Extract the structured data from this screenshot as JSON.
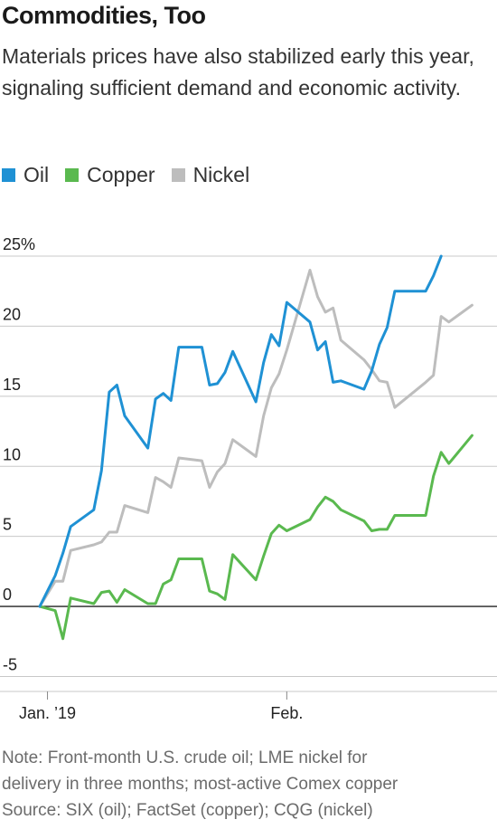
{
  "header": {
    "title": "Commodities, Too",
    "subtitle": "Materials prices have also stabilized early this year, signaling sufficient demand and economic activity."
  },
  "legend": [
    {
      "label": "Oil",
      "color": "#1f91d4"
    },
    {
      "label": "Copper",
      "color": "#5ab94f"
    },
    {
      "label": "Nickel",
      "color": "#bdbdbd"
    }
  ],
  "footer": {
    "note_lines": [
      "Note: Front-month U.S. crude oil; LME nickel for",
      "delivery in three months; most-active Comex copper"
    ],
    "source": "Source: SIX (oil); FactSet (copper); CQG (nickel)"
  },
  "chart_data": {
    "type": "line",
    "title": "Commodities, Too",
    "xlabel": "",
    "ylabel": "",
    "xlim": [
      "2018-12-31",
      "2019-02-28"
    ],
    "ylim": [
      -6,
      25
    ],
    "y_ticks": [
      {
        "value": 25,
        "label": "25%"
      },
      {
        "value": 20,
        "label": "20"
      },
      {
        "value": 15,
        "label": "15"
      },
      {
        "value": 10,
        "label": "10"
      },
      {
        "value": 5,
        "label": "5"
      },
      {
        "value": 0,
        "label": "0"
      },
      {
        "value": -5,
        "label": "-5"
      }
    ],
    "x_ticks": [
      {
        "date": "2019-01-01",
        "label": "Jan. ’19"
      },
      {
        "date": "2019-02-01",
        "label": "Feb."
      }
    ],
    "grid": true,
    "legend_position": "top-left",
    "series": [
      {
        "name": "Oil",
        "color": "#1f91d4",
        "points": [
          [
            "2018-12-31",
            0
          ],
          [
            "2019-01-02",
            2.2
          ],
          [
            "2019-01-03",
            3.8
          ],
          [
            "2019-01-04",
            5.7
          ],
          [
            "2019-01-07",
            6.9
          ],
          [
            "2019-01-08",
            9.7
          ],
          [
            "2019-01-09",
            15.3
          ],
          [
            "2019-01-10",
            15.8
          ],
          [
            "2019-01-11",
            13.6
          ],
          [
            "2019-01-14",
            11.3
          ],
          [
            "2019-01-15",
            14.8
          ],
          [
            "2019-01-16",
            15.2
          ],
          [
            "2019-01-17",
            14.7
          ],
          [
            "2019-01-18",
            18.5
          ],
          [
            "2019-01-21",
            18.5
          ],
          [
            "2019-01-22",
            15.8
          ],
          [
            "2019-01-23",
            15.9
          ],
          [
            "2019-01-24",
            16.7
          ],
          [
            "2019-01-25",
            18.2
          ],
          [
            "2019-01-28",
            14.6
          ],
          [
            "2019-01-29",
            17.4
          ],
          [
            "2019-01-30",
            19.4
          ],
          [
            "2019-01-31",
            18.6
          ],
          [
            "2019-02-01",
            21.7
          ],
          [
            "2019-02-04",
            20.3
          ],
          [
            "2019-02-05",
            18.3
          ],
          [
            "2019-02-06",
            18.9
          ],
          [
            "2019-02-07",
            16.0
          ],
          [
            "2019-02-08",
            16.1
          ],
          [
            "2019-02-11",
            15.5
          ],
          [
            "2019-02-12",
            16.8
          ],
          [
            "2019-02-13",
            18.7
          ],
          [
            "2019-02-14",
            19.9
          ],
          [
            "2019-02-15",
            22.5
          ],
          [
            "2019-02-19",
            22.5
          ],
          [
            "2019-02-20",
            23.6
          ],
          [
            "2019-02-21",
            25.0
          ]
        ]
      },
      {
        "name": "Copper",
        "color": "#5ab94f",
        "points": [
          [
            "2018-12-31",
            0
          ],
          [
            "2019-01-02",
            -0.3
          ],
          [
            "2019-01-03",
            -2.3
          ],
          [
            "2019-01-04",
            0.6
          ],
          [
            "2019-01-07",
            0.2
          ],
          [
            "2019-01-08",
            1.0
          ],
          [
            "2019-01-09",
            1.1
          ],
          [
            "2019-01-10",
            0.3
          ],
          [
            "2019-01-11",
            1.2
          ],
          [
            "2019-01-14",
            0.2
          ],
          [
            "2019-01-15",
            0.2
          ],
          [
            "2019-01-16",
            1.6
          ],
          [
            "2019-01-17",
            1.9
          ],
          [
            "2019-01-18",
            3.4
          ],
          [
            "2019-01-21",
            3.4
          ],
          [
            "2019-01-22",
            1.1
          ],
          [
            "2019-01-23",
            0.9
          ],
          [
            "2019-01-24",
            0.5
          ],
          [
            "2019-01-25",
            3.7
          ],
          [
            "2019-01-28",
            1.9
          ],
          [
            "2019-01-29",
            3.6
          ],
          [
            "2019-01-30",
            5.2
          ],
          [
            "2019-01-31",
            5.8
          ],
          [
            "2019-02-01",
            5.4
          ],
          [
            "2019-02-04",
            6.2
          ],
          [
            "2019-02-05",
            7.1
          ],
          [
            "2019-02-06",
            7.8
          ],
          [
            "2019-02-07",
            7.5
          ],
          [
            "2019-02-08",
            6.9
          ],
          [
            "2019-02-11",
            6.1
          ],
          [
            "2019-02-12",
            5.4
          ],
          [
            "2019-02-13",
            5.5
          ],
          [
            "2019-02-14",
            5.5
          ],
          [
            "2019-02-15",
            6.5
          ],
          [
            "2019-02-19",
            6.5
          ],
          [
            "2019-02-20",
            9.3
          ],
          [
            "2019-02-21",
            11.0
          ],
          [
            "2019-02-22",
            10.2
          ],
          [
            "2019-02-25",
            12.2
          ]
        ]
      },
      {
        "name": "Nickel",
        "color": "#bdbdbd",
        "points": [
          [
            "2018-12-31",
            0
          ],
          [
            "2019-01-02",
            1.8
          ],
          [
            "2019-01-03",
            1.8
          ],
          [
            "2019-01-04",
            4.0
          ],
          [
            "2019-01-07",
            4.4
          ],
          [
            "2019-01-08",
            4.6
          ],
          [
            "2019-01-09",
            5.3
          ],
          [
            "2019-01-10",
            5.3
          ],
          [
            "2019-01-11",
            7.2
          ],
          [
            "2019-01-14",
            6.7
          ],
          [
            "2019-01-15",
            9.2
          ],
          [
            "2019-01-16",
            8.9
          ],
          [
            "2019-01-17",
            8.5
          ],
          [
            "2019-01-18",
            10.6
          ],
          [
            "2019-01-21",
            10.4
          ],
          [
            "2019-01-22",
            8.5
          ],
          [
            "2019-01-23",
            9.6
          ],
          [
            "2019-01-24",
            10.2
          ],
          [
            "2019-01-25",
            11.9
          ],
          [
            "2019-01-28",
            10.7
          ],
          [
            "2019-01-29",
            13.6
          ],
          [
            "2019-01-30",
            15.6
          ],
          [
            "2019-01-31",
            16.6
          ],
          [
            "2019-02-01",
            18.3
          ],
          [
            "2019-02-04",
            24.0
          ],
          [
            "2019-02-05",
            22.1
          ],
          [
            "2019-02-06",
            21.0
          ],
          [
            "2019-02-07",
            21.3
          ],
          [
            "2019-02-08",
            19.0
          ],
          [
            "2019-02-11",
            17.6
          ],
          [
            "2019-02-12",
            16.9
          ],
          [
            "2019-02-13",
            16.1
          ],
          [
            "2019-02-14",
            16.0
          ],
          [
            "2019-02-15",
            14.2
          ],
          [
            "2019-02-19",
            16.0
          ],
          [
            "2019-02-20",
            16.5
          ],
          [
            "2019-02-21",
            20.7
          ],
          [
            "2019-02-22",
            20.3
          ],
          [
            "2019-02-25",
            21.5
          ]
        ]
      }
    ]
  }
}
